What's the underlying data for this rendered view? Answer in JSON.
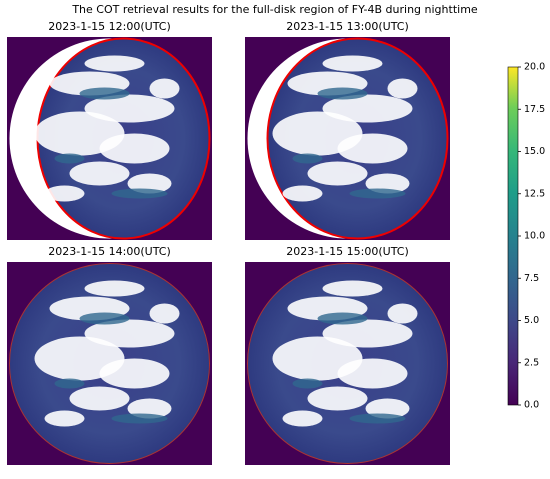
{
  "chart_data": {
    "type": "image-grid",
    "title": "The COT retrieval results for the full-disk region of FY-4B during nighttime",
    "panels": [
      {
        "title": "2023-1-15 12:00(UTC)"
      },
      {
        "title": "2023-1-15 13:00(UTC)"
      },
      {
        "title": "2023-1-15 14:00(UTC)"
      },
      {
        "title": "2023-1-15 15:00(UTC)"
      }
    ],
    "colorbar": {
      "ylim": [
        0,
        20
      ],
      "yticks": [
        {
          "value": 0,
          "label": "0.0"
        },
        {
          "value": 2.5,
          "label": "2.5"
        },
        {
          "value": 5,
          "label": "5.0"
        },
        {
          "value": 7.5,
          "label": "7.5"
        },
        {
          "value": 10,
          "label": "10.0"
        },
        {
          "value": 12.5,
          "label": "12.5"
        },
        {
          "value": 15,
          "label": "15.0"
        },
        {
          "value": 17.5,
          "label": "17.5"
        },
        {
          "value": 20,
          "label": "20.0"
        }
      ]
    }
  }
}
